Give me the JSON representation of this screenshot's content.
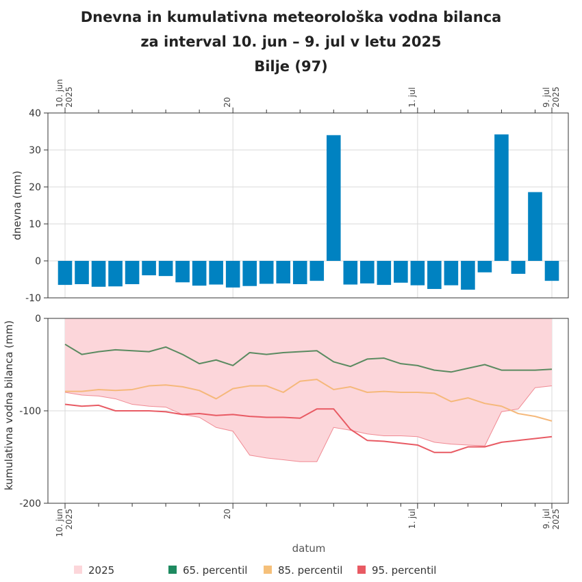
{
  "chart_data": [
    {
      "type": "bar",
      "title": [
        "Dnevna in kumulativna meteorološka vodna bilanca",
        "za interval 10. jun – 9. jul v letu 2025",
        "Bilje (97)"
      ],
      "ylabel": "dnevna (mm)",
      "ylim": [
        -10,
        40
      ],
      "yticks": [
        -10,
        0,
        10,
        20,
        30,
        40
      ],
      "x": [
        "2025-06-10",
        "2025-06-11",
        "2025-06-12",
        "2025-06-13",
        "2025-06-14",
        "2025-06-15",
        "2025-06-16",
        "2025-06-17",
        "2025-06-18",
        "2025-06-19",
        "2025-06-20",
        "2025-06-21",
        "2025-06-22",
        "2025-06-23",
        "2025-06-24",
        "2025-06-25",
        "2025-06-26",
        "2025-06-27",
        "2025-06-28",
        "2025-06-29",
        "2025-06-30",
        "2025-07-01",
        "2025-07-02",
        "2025-07-03",
        "2025-07-04",
        "2025-07-05",
        "2025-07-06",
        "2025-07-07",
        "2025-07-08",
        "2025-07-09"
      ],
      "values": [
        -6.5,
        -6.3,
        -7.0,
        -6.9,
        -6.3,
        -3.9,
        -4.1,
        -5.8,
        -6.7,
        -6.4,
        -7.2,
        -6.8,
        -6.2,
        -6.1,
        -6.3,
        -5.4,
        34.0,
        -6.4,
        -6.1,
        -6.5,
        -5.9,
        -6.6,
        -7.6,
        -6.6,
        -7.8,
        -3.1,
        34.2,
        -3.5,
        18.6,
        -5.4
      ],
      "color": "#0082c1",
      "grid": true
    },
    {
      "type": "line",
      "ylabel": "kumulativna vodna bilanca (mm)",
      "xlabel": "datum",
      "ylim": [
        -200,
        0
      ],
      "yticks": [
        -200,
        -100,
        0
      ],
      "x": [
        "2025-06-10",
        "2025-06-11",
        "2025-06-12",
        "2025-06-13",
        "2025-06-14",
        "2025-06-15",
        "2025-06-16",
        "2025-06-17",
        "2025-06-18",
        "2025-06-19",
        "2025-06-20",
        "2025-06-21",
        "2025-06-22",
        "2025-06-23",
        "2025-06-24",
        "2025-06-25",
        "2025-06-26",
        "2025-06-27",
        "2025-06-28",
        "2025-06-29",
        "2025-06-30",
        "2025-07-01",
        "2025-07-02",
        "2025-07-03",
        "2025-07-04",
        "2025-07-05",
        "2025-07-06",
        "2025-07-07",
        "2025-07-08",
        "2025-07-09"
      ],
      "area_2025": {
        "name": "2025",
        "color": "#fcd6da",
        "line_color": "#f08a93",
        "values": [
          -80,
          -83,
          -84,
          -87,
          -93,
          -95,
          -96,
          -104,
          -107,
          -118,
          -122,
          -148,
          -151,
          -153,
          -155,
          -155,
          -118,
          -121,
          -125,
          -127,
          -127,
          -128,
          -134,
          -136,
          -137,
          -138,
          -101,
          -98,
          -75,
          -73
        ]
      },
      "series": [
        {
          "name": "65. percentil",
          "color": "#5a8a60",
          "values": [
            -28,
            -39,
            -36,
            -34,
            -35,
            -36,
            -31,
            -39,
            -49,
            -45,
            -51,
            -37,
            -39,
            -37,
            -36,
            -35,
            -47,
            -52,
            -44,
            -43,
            -49,
            -51,
            -56,
            -58,
            -54,
            -50,
            -56,
            -56,
            -56,
            -55
          ]
        },
        {
          "name": "85. percentil",
          "color": "#f5b87a",
          "values": [
            -79,
            -79,
            -77,
            -78,
            -77,
            -73,
            -72,
            -74,
            -78,
            -87,
            -76,
            -73,
            -73,
            -80,
            -68,
            -66,
            -77,
            -74,
            -80,
            -79,
            -80,
            -80,
            -81,
            -90,
            -86,
            -92,
            -95,
            -103,
            -106,
            -111
          ]
        },
        {
          "name": "95. percentil",
          "color": "#e85a63",
          "values": [
            -93,
            -95,
            -94,
            -100,
            -100,
            -100,
            -101,
            -104,
            -103,
            -105,
            -104,
            -106,
            -107,
            -107,
            -108,
            -98,
            -98,
            -120,
            -132,
            -133,
            -135,
            -137,
            -145,
            -145,
            -139,
            -139,
            -134,
            -132,
            -130,
            -128
          ]
        }
      ],
      "grid": true
    }
  ],
  "date_axis": {
    "start_label": [
      "10. jun",
      "2025"
    ],
    "mid_label": "20",
    "month_label": "1. jul",
    "end_label": [
      "9. jul",
      "2025"
    ]
  },
  "legend": [
    {
      "label": "2025",
      "color": "#fcd6da"
    },
    {
      "label": "65. percentil",
      "color": "#1e8a60"
    },
    {
      "label": "85. percentil",
      "color": "#f5c07a"
    },
    {
      "label": "95. percentil",
      "color": "#e85a63"
    }
  ]
}
